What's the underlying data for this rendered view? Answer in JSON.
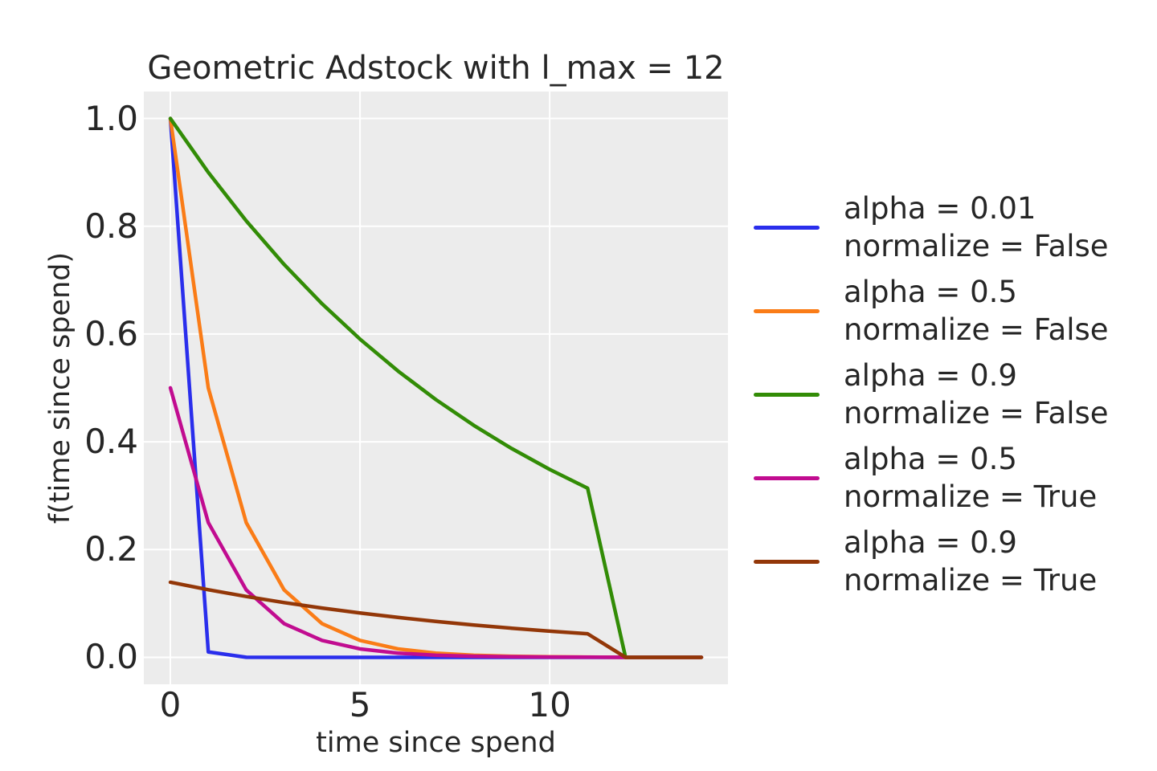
{
  "chart_data": {
    "type": "line",
    "title": "Geometric Adstock with l_max = 12",
    "xlabel": "time since spend",
    "ylabel": "f(time since spend)",
    "xlim": [
      -0.7,
      14.7
    ],
    "ylim": [
      -0.05,
      1.05
    ],
    "xticks": [
      0,
      5,
      10
    ],
    "xtick_labels": [
      "0",
      "5",
      "10"
    ],
    "yticks": [
      0.0,
      0.2,
      0.4,
      0.6,
      0.8,
      1.0
    ],
    "ytick_labels": [
      "0.0",
      "0.2",
      "0.4",
      "0.6",
      "0.8",
      "1.0"
    ],
    "grid": true,
    "legend_position": "outside-right",
    "plot_background": "#ececec",
    "grid_color": "#ffffff",
    "text_color": "#262626",
    "x": [
      0,
      1,
      2,
      3,
      4,
      5,
      6,
      7,
      8,
      9,
      10,
      11,
      12,
      13,
      14
    ],
    "series": [
      {
        "name": "alpha = 0.01, normalize = False",
        "legend_lines": [
          "alpha = 0.01",
          "normalize = False"
        ],
        "color": "#2a2eec",
        "values": [
          1.0,
          0.01,
          0.0001,
          1e-06,
          0,
          0,
          0,
          0,
          0,
          0,
          0,
          0,
          0,
          0,
          0
        ]
      },
      {
        "name": "alpha = 0.5, normalize = False",
        "legend_lines": [
          "alpha = 0.5",
          "normalize = False"
        ],
        "color": "#fa7c17",
        "values": [
          1.0,
          0.5,
          0.25,
          0.125,
          0.0625,
          0.03125,
          0.015625,
          0.007813,
          0.003906,
          0.001953,
          0.000977,
          0.000488,
          0,
          0,
          0
        ]
      },
      {
        "name": "alpha = 0.9, normalize = False",
        "legend_lines": [
          "alpha = 0.9",
          "normalize = False"
        ],
        "color": "#328c06",
        "values": [
          1.0,
          0.9,
          0.81,
          0.729,
          0.6561,
          0.59049,
          0.531441,
          0.478297,
          0.430467,
          0.38742,
          0.348678,
          0.313811,
          0,
          0,
          0
        ]
      },
      {
        "name": "alpha = 0.5, normalize = True",
        "legend_lines": [
          "alpha = 0.5",
          "normalize = True"
        ],
        "color": "#c10c90",
        "values": [
          0.500122,
          0.250061,
          0.125031,
          0.062515,
          0.031258,
          0.015629,
          0.007814,
          0.003907,
          0.001954,
          0.000977,
          0.000488,
          0.000244,
          0,
          0,
          0
        ]
      },
      {
        "name": "alpha = 0.9, normalize = True",
        "legend_lines": [
          "alpha = 0.9",
          "normalize = True"
        ],
        "color": "#933708",
        "values": [
          0.139359,
          0.125423,
          0.112881,
          0.101593,
          0.091434,
          0.08229,
          0.074061,
          0.066655,
          0.05999,
          0.053991,
          0.048592,
          0.043732,
          0,
          0,
          0
        ]
      }
    ]
  }
}
